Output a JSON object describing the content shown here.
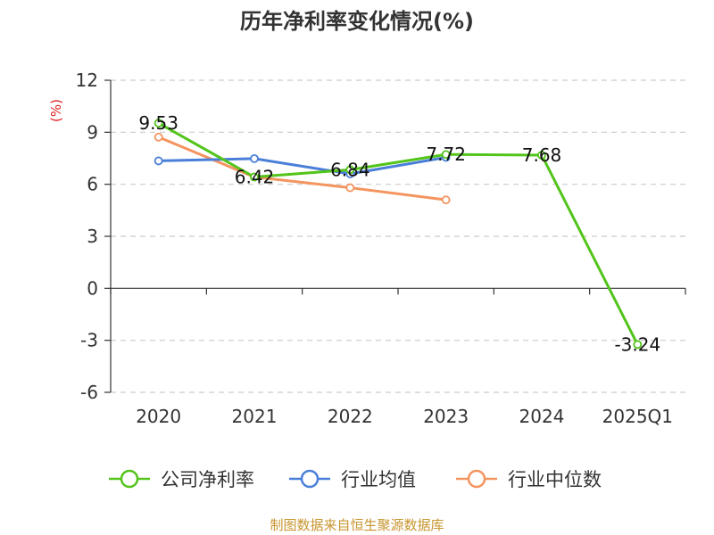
{
  "chart_data": {
    "type": "line",
    "title": "历年净利率变化情况(%)",
    "xlabel": "",
    "ylabel": "(%)",
    "categories": [
      "2020",
      "2021",
      "2022",
      "2023",
      "2024",
      "2025Q1"
    ],
    "ylim": [
      -6,
      12
    ],
    "yticks": [
      "12",
      "9",
      "6",
      "3",
      "0",
      "-3",
      "-6"
    ],
    "grid": true,
    "legend_position": "bottom",
    "series": [
      {
        "name": "公司净利率",
        "color": "#52c41a",
        "values": [
          9.53,
          6.42,
          6.84,
          7.72,
          7.68,
          -3.24
        ],
        "labels": [
          "9.53",
          "6.42",
          "6.84",
          "7.72",
          "7.68",
          "-3.24"
        ]
      },
      {
        "name": "行业均值",
        "color": "#4a7fd9",
        "values": [
          7.35,
          7.48,
          6.6,
          7.55,
          null,
          null
        ]
      },
      {
        "name": "行业中位数",
        "color": "#f4945f",
        "values": [
          8.72,
          6.42,
          5.8,
          5.1,
          null,
          null
        ]
      }
    ]
  },
  "ylabel_color": "#e02020",
  "source": {
    "text": "制图数据来自恒生聚源数据库",
    "color": "#c8952e"
  }
}
